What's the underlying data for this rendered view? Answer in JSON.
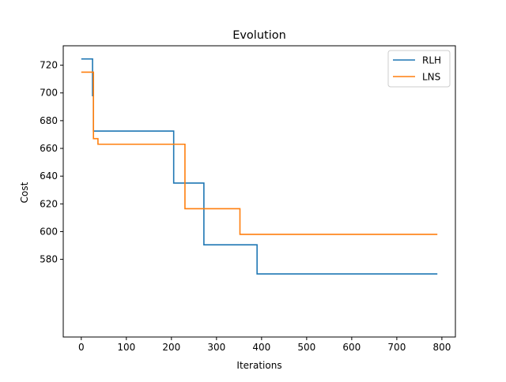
{
  "chart_data": {
    "type": "line",
    "title": "Evolution",
    "xlabel": "Iterations",
    "ylabel": "Cost",
    "xlim": [
      -40,
      830
    ],
    "ylim": [
      524,
      734
    ],
    "xticks": [
      0,
      100,
      200,
      300,
      400,
      500,
      600,
      700,
      800
    ],
    "yticks": [
      580,
      600,
      620,
      640,
      660,
      680,
      700,
      720
    ],
    "grid": false,
    "legend": "top-right",
    "series": [
      {
        "name": "RLH",
        "color": "#1f77b4",
        "x": [
          0,
          25,
          25,
          27,
          27,
          205,
          205,
          272,
          272,
          390,
          390,
          790
        ],
        "y": [
          724.5,
          724.5,
          698,
          698,
          672.5,
          672.5,
          635,
          635,
          590.5,
          590.5,
          569.5,
          569.5
        ]
      },
      {
        "name": "LNS",
        "color": "#ff7f0e",
        "x": [
          0,
          27,
          27,
          37,
          37,
          230,
          230,
          352,
          352,
          790
        ],
        "y": [
          715,
          715,
          667,
          667,
          663,
          663,
          616.5,
          616.5,
          598,
          598
        ]
      }
    ]
  }
}
